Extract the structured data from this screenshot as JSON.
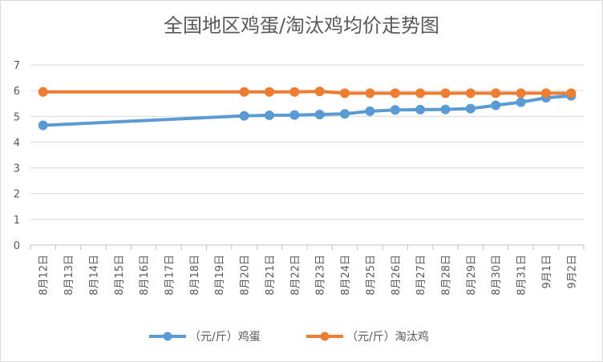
{
  "chart_data": {
    "type": "line",
    "title": "全国地区鸡蛋/淘汰鸡均价走势图",
    "xlabel": "",
    "ylabel": "",
    "categories": [
      "8月12日",
      "8月13日",
      "8月14日",
      "8月15日",
      "8月16日",
      "8月17日",
      "8月18日",
      "8月19日",
      "8月20日",
      "8月21日",
      "8月22日",
      "8月23日",
      "8月24日",
      "8月25日",
      "8月26日",
      "8月27日",
      "8月28日",
      "8月29日",
      "8月30日",
      "8月31日",
      "9月1日",
      "9月2日"
    ],
    "ylim": [
      0,
      7
    ],
    "yticks": [
      "0",
      "1",
      "2",
      "3",
      "4",
      "5",
      "6",
      "7"
    ],
    "grid": true,
    "legend_position": "bottom",
    "series": [
      {
        "name": "（元/斤）鸡蛋",
        "color": "#5b9bd5",
        "values": [
          4.65,
          null,
          null,
          null,
          null,
          null,
          null,
          null,
          5.02,
          5.04,
          5.05,
          5.07,
          5.1,
          5.2,
          5.25,
          5.26,
          5.27,
          5.3,
          5.43,
          5.55,
          5.72,
          5.8
        ]
      },
      {
        "name": "（元/斤）淘汰鸡",
        "color": "#ed7d31",
        "values": [
          5.95,
          null,
          null,
          null,
          null,
          null,
          null,
          null,
          5.95,
          5.95,
          5.95,
          5.97,
          5.9,
          5.9,
          5.9,
          5.9,
          5.9,
          5.9,
          5.9,
          5.9,
          5.9,
          5.9
        ]
      }
    ]
  }
}
